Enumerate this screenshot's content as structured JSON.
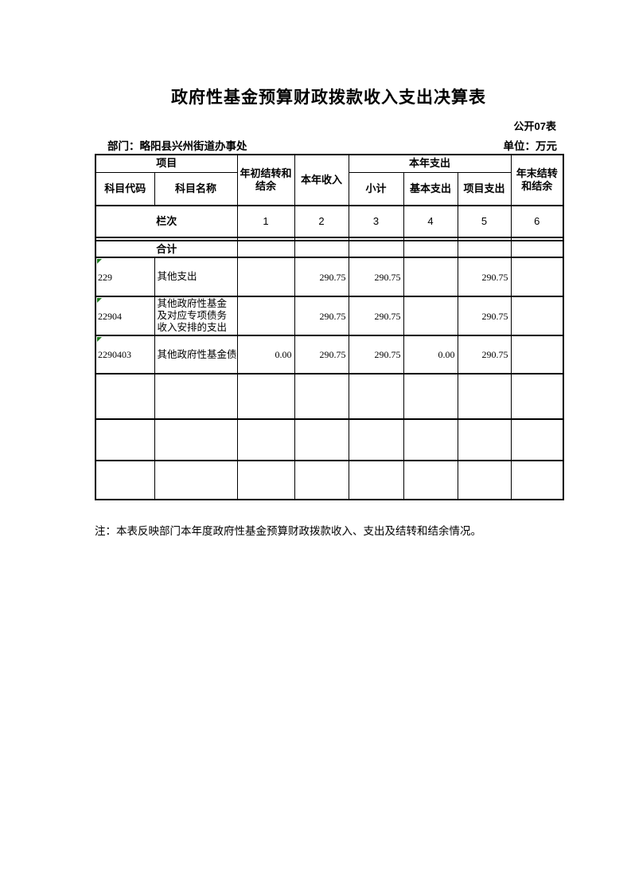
{
  "page": {
    "title": "政府性基金预算财政拨款收入支出决算表",
    "form_code": "公开07表",
    "department_label": "部门：略阳县兴州街道办事处",
    "unit_label": "单位：万元",
    "note": "注：本表反映部门本年度政府性基金预算财政拨款收入、支出及结转和结余情况。"
  },
  "table": {
    "headers": {
      "project": "项目",
      "subject_code": "科目代码",
      "subject_name": "科目名称",
      "begin_balance": "年初结转和结余",
      "annual_revenue": "本年收入",
      "annual_expenditure": "本年支出",
      "subtotal": "小计",
      "basic_expenditure": "基本支出",
      "project_expenditure": "项目支出",
      "end_balance": "年末结转和结余"
    },
    "column_index": {
      "label": "栏次",
      "numbers": [
        "1",
        "2",
        "3",
        "4",
        "5",
        "6"
      ]
    },
    "total_row": {
      "label": "合计",
      "values": [
        "",
        "",
        "",
        "",
        "",
        ""
      ]
    },
    "rows": [
      {
        "code": "229",
        "name": "其他支出",
        "truncated": false,
        "values": [
          "",
          "290.75",
          "290.75",
          "",
          "290.75",
          ""
        ]
      },
      {
        "code": "22904",
        "name": "其他政府性基金及对应专项债务收入安排的支出",
        "truncated": false,
        "values": [
          "",
          "290.75",
          "290.75",
          "",
          "290.75",
          ""
        ]
      },
      {
        "code": "2290403",
        "name": "其他政府性基金债",
        "truncated": true,
        "values": [
          "0.00",
          "290.75",
          "290.75",
          "0.00",
          "290.75",
          ""
        ]
      },
      {
        "code": "",
        "name": "",
        "truncated": false,
        "values": [
          "",
          "",
          "",
          "",
          "",
          ""
        ]
      },
      {
        "code": "",
        "name": "",
        "truncated": false,
        "values": [
          "",
          "",
          "",
          "",
          "",
          ""
        ]
      },
      {
        "code": "",
        "name": "",
        "truncated": false,
        "values": [
          "",
          "",
          "",
          "",
          "",
          ""
        ]
      }
    ]
  }
}
